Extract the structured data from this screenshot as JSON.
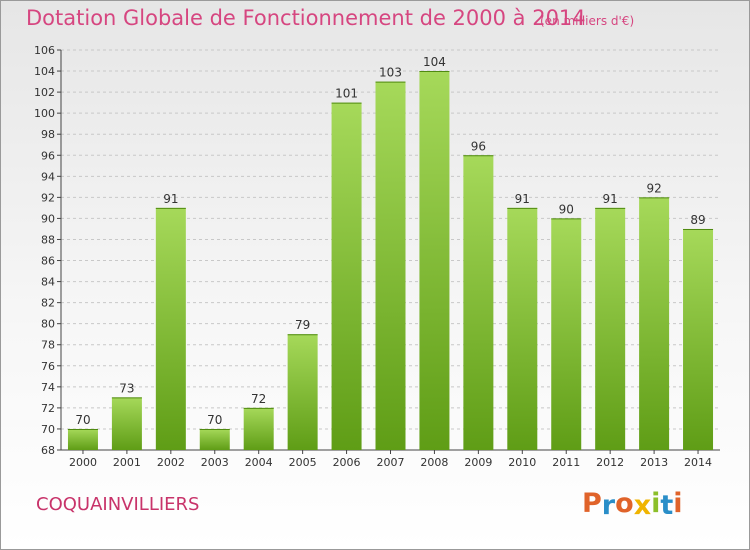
{
  "header": {
    "title": "Dotation Globale de Fonctionnement de 2000 à 2014",
    "unit": "(en milliers d'€)"
  },
  "footer": {
    "commune": "COQUAINVILLIERS",
    "logo_text": "Proxiti",
    "logo_colors": [
      "#e0632a",
      "#2a8ec8",
      "#e0632a",
      "#f0b400",
      "#8cbf2a",
      "#2a8ec8",
      "#e0632a"
    ]
  },
  "colors": {
    "bar_light": "#a6d95a",
    "bar_dark": "#5f9d16",
    "grid": "#c8c8c8",
    "title": "#d64680"
  },
  "chart_data": {
    "type": "bar",
    "title": "Dotation Globale de Fonctionnement de 2000 à 2014",
    "subtitle": "(en milliers d'€)",
    "categories": [
      "2000",
      "2001",
      "2002",
      "2003",
      "2004",
      "2005",
      "2006",
      "2007",
      "2008",
      "2009",
      "2010",
      "2011",
      "2012",
      "2013",
      "2014"
    ],
    "values": [
      70,
      73,
      91,
      70,
      72,
      79,
      101,
      103,
      104,
      96,
      91,
      90,
      91,
      92,
      89
    ],
    "ylim": [
      68,
      106
    ],
    "yticks": [
      68,
      70,
      72,
      74,
      76,
      78,
      80,
      82,
      84,
      86,
      88,
      90,
      92,
      94,
      96,
      98,
      100,
      102,
      104,
      106
    ],
    "grid": true,
    "legend": "none"
  }
}
